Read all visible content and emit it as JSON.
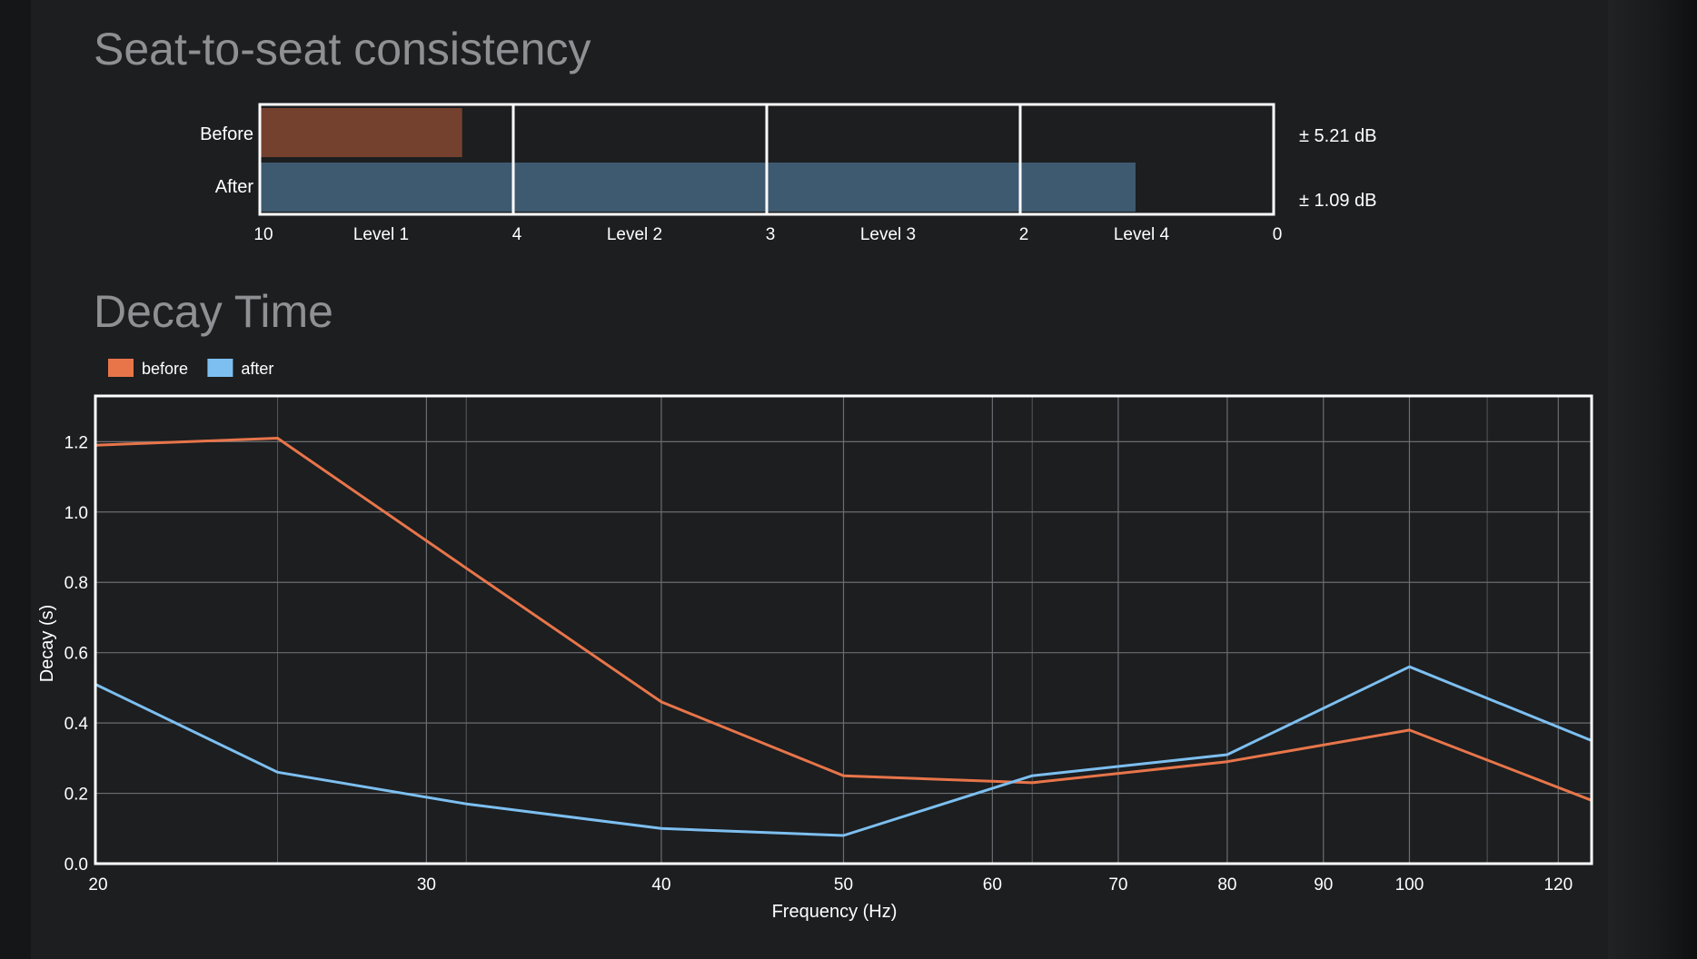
{
  "titles": {
    "seat_consistency": "Seat-to-seat consistency",
    "decay_time": "Decay Time"
  },
  "chart_data": [
    {
      "type": "bar",
      "orientation": "horizontal",
      "categories": [
        "Before",
        "After"
      ],
      "values": [
        5.21,
        1.09
      ],
      "value_labels": [
        "± 5.21 dB",
        "± 1.09 dB"
      ],
      "colors": [
        "#74412f",
        "#3e5a70"
      ],
      "axis_segments": [
        {
          "from": 10,
          "to": 4,
          "label": "Level 1"
        },
        {
          "from": 4,
          "to": 3,
          "label": "Level 2"
        },
        {
          "from": 3,
          "to": 2,
          "label": "Level 3"
        },
        {
          "from": 2,
          "to": 0,
          "label": "Level 4"
        }
      ],
      "ticks": [
        10,
        4,
        3,
        2,
        0
      ],
      "tick_labels": [
        "10",
        "4",
        "3",
        "2",
        "0"
      ]
    },
    {
      "type": "line",
      "xscale": "log",
      "xlabel": "Frequency (Hz)",
      "ylabel": "Decay (s)",
      "xlim": [
        20,
        125
      ],
      "ylim": [
        0,
        1.33
      ],
      "xticks": [
        20,
        30,
        40,
        50,
        60,
        70,
        80,
        90,
        100,
        120
      ],
      "yticks": [
        0.0,
        0.2,
        0.4,
        0.6,
        0.8,
        1.0,
        1.2
      ],
      "ytick_labels": [
        "0.0",
        "0.2",
        "0.4",
        "0.6",
        "0.8",
        "1.0",
        "1.2"
      ],
      "grid": true,
      "legend": "top-left",
      "series": [
        {
          "name": "before",
          "color": "#e8754a",
          "x": [
            20,
            25,
            31.5,
            40,
            50,
            63,
            80,
            100,
            125
          ],
          "y": [
            1.19,
            1.21,
            0.84,
            0.46,
            0.25,
            0.23,
            0.29,
            0.38,
            0.18
          ]
        },
        {
          "name": "after",
          "color": "#7dbff0",
          "x": [
            20,
            25,
            31.5,
            40,
            50,
            63,
            80,
            100,
            125
          ],
          "y": [
            0.51,
            0.26,
            0.17,
            0.1,
            0.08,
            0.25,
            0.31,
            0.56,
            0.35
          ]
        }
      ]
    }
  ]
}
